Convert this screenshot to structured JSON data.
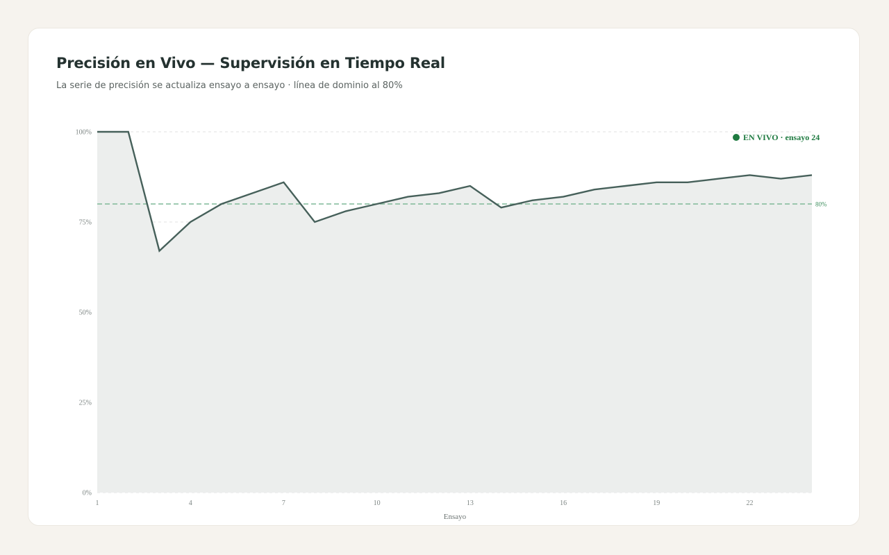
{
  "page": {
    "title": "Precisión en Vivo — Supervisión en Tiempo Real",
    "subtitle": "La serie de precisión se actualiza ensayo a ensayo · línea de dominio al 80%"
  },
  "live_badge": {
    "text": "EN VIVO · ensayo 24",
    "color": "#1e7a40"
  },
  "chart_data": {
    "type": "area",
    "x": [
      1,
      2,
      3,
      4,
      5,
      6,
      7,
      8,
      9,
      10,
      11,
      12,
      13,
      14,
      15,
      16,
      17,
      18,
      19,
      20,
      21,
      22,
      23,
      24
    ],
    "series": [
      {
        "values": [
          100,
          100,
          67,
          75,
          80,
          83,
          86,
          75,
          78,
          80,
          82,
          83,
          85,
          79,
          81,
          82,
          84,
          85,
          86,
          86,
          87,
          88,
          87,
          88
        ],
        "color": "#46605a",
        "fill": "#eceeed"
      }
    ],
    "xlabel": "Ensayo",
    "ylabel": "",
    "xlim": [
      1,
      24
    ],
    "ylim": [
      0,
      100
    ],
    "x_ticks": [
      1,
      4,
      7,
      10,
      13,
      16,
      19,
      22
    ],
    "y_ticks": [
      {
        "value": 0,
        "label": "0%"
      },
      {
        "value": 25,
        "label": "25%"
      },
      {
        "value": 50,
        "label": "50%"
      },
      {
        "value": 75,
        "label": "75%"
      },
      {
        "value": 100,
        "label": "100%"
      }
    ],
    "reference_line": {
      "value": 80,
      "label": "80%",
      "color": "#7fb898"
    },
    "grid": true
  }
}
